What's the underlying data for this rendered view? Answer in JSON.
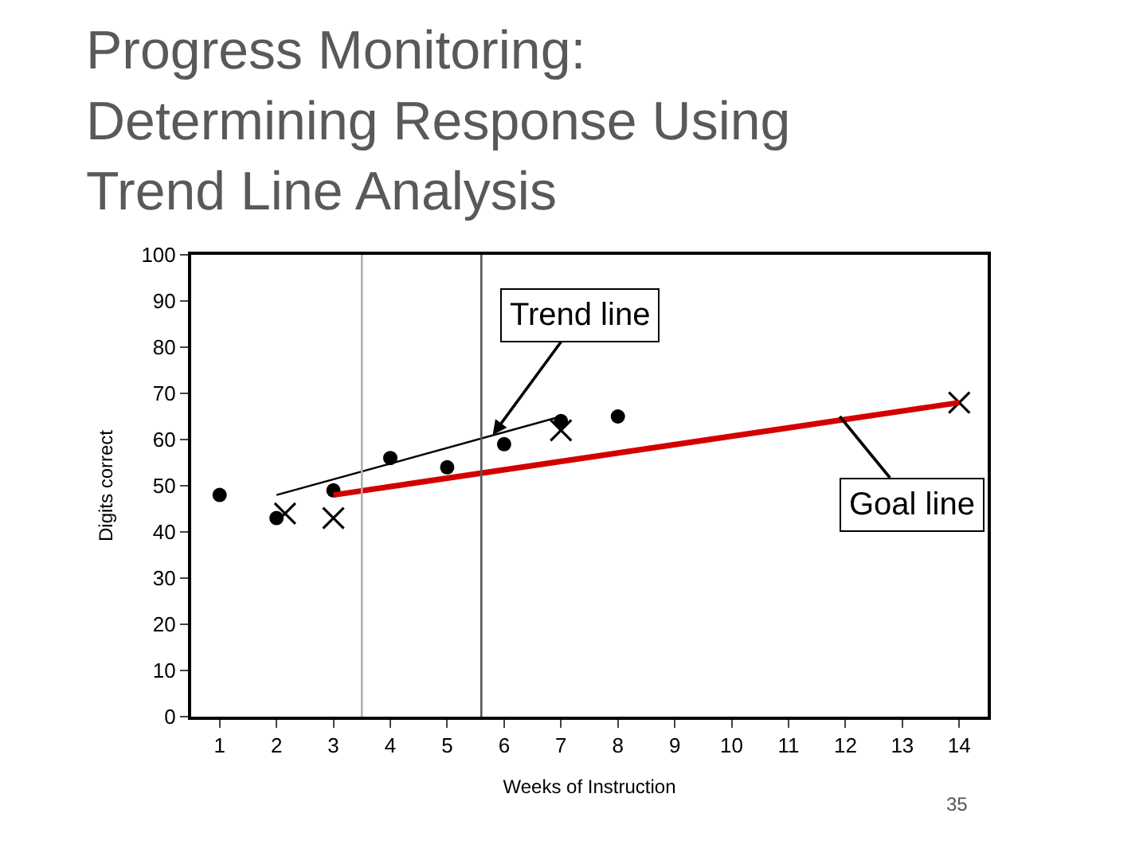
{
  "chart_data": {
    "type": "scatter",
    "title": "Progress Monitoring:\nDetermining Response Using\nTrend Line Analysis",
    "xlabel": "Weeks of Instruction",
    "ylabel": "Digits correct",
    "x": [
      1,
      2,
      3,
      4,
      5,
      6,
      7,
      8
    ],
    "series": [
      {
        "color": "#000000",
        "values": [
          48,
          43,
          49,
          56,
          54,
          59,
          64,
          65
        ],
        "marker": "circle"
      },
      {
        "color": "#000000",
        "x": [
          2.15,
          3,
          7,
          14
        ],
        "values": [
          44,
          43,
          62,
          68
        ],
        "marker": "cross"
      },
      {
        "type": "line",
        "color": "#000000",
        "x": [
          2,
          7
        ],
        "values": [
          48,
          65
        ],
        "marker": "none"
      },
      {
        "type": "line",
        "color": "#d40000",
        "x": [
          3,
          14
        ],
        "values": [
          48,
          68
        ],
        "marker": "none"
      }
    ],
    "xlim": [
      0.5,
      14.5
    ],
    "xticks": [
      1,
      2,
      3,
      4,
      5,
      6,
      7,
      8,
      9,
      10,
      11,
      12,
      13,
      14
    ],
    "ylim": [
      0,
      100
    ],
    "yticks": [
      0,
      10,
      20,
      30,
      40,
      50,
      60,
      70,
      80,
      90,
      100
    ],
    "ref_lines": [
      {
        "axis": "x",
        "value": 3.5,
        "color": "#b0b0b0"
      },
      {
        "axis": "x",
        "value": 5.6,
        "color": "#555555"
      }
    ],
    "annotations": [
      {
        "text": "Trend line",
        "x": 5.8,
        "y": 61
      },
      {
        "text": "Goal line",
        "x": 11.9,
        "y": 65
      },
      "35"
    ]
  }
}
